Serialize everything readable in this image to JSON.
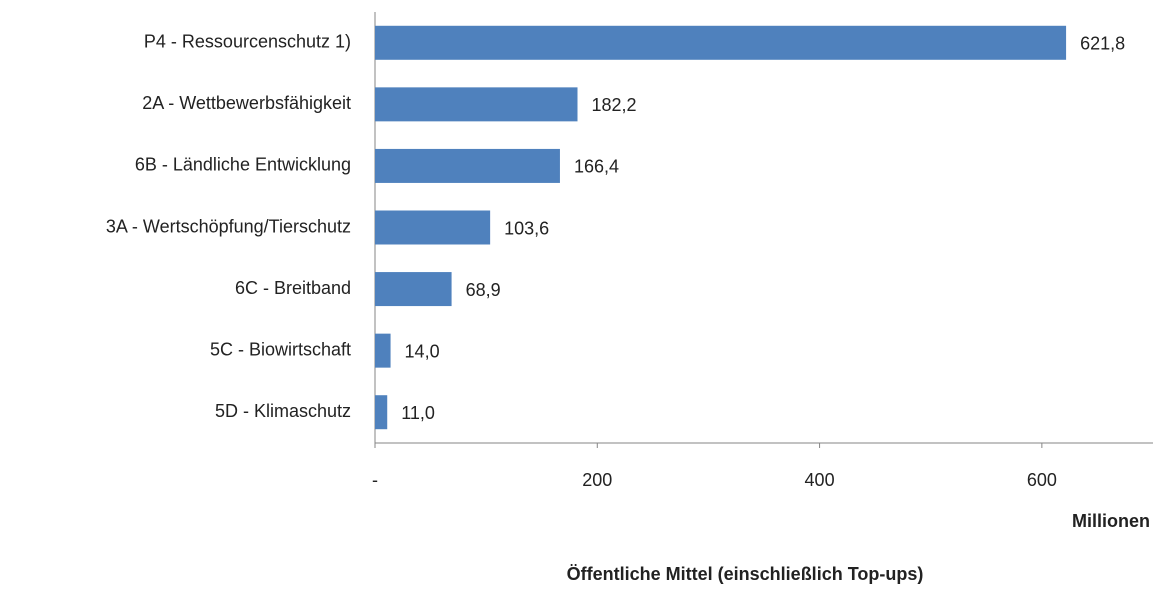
{
  "chart_data": {
    "type": "bar",
    "orientation": "horizontal",
    "title": "Öffentliche Mittel (einschließlich Top-ups)",
    "x_unit_label": "Millionen",
    "categories": [
      "P4 - Ressourcenschutz 1)",
      "2A - Wettbewerbsfähigkeit",
      "6B - Ländliche Entwicklung",
      "3A - Wertschöpfung/Tierschutz",
      "6C - Breitband",
      "5C - Biowirtschaft",
      "5D - Klimaschutz"
    ],
    "values": [
      621.8,
      182.2,
      166.4,
      103.6,
      68.9,
      14.0,
      11.0
    ],
    "value_labels": [
      "621,8",
      "182,2",
      "166,4",
      "103,6",
      "68,9",
      "14,0",
      "11,0"
    ],
    "color": "#4f81bd",
    "xlim": [
      0,
      700
    ],
    "xticks": [
      {
        "value": 0,
        "label": "-"
      },
      200,
      400,
      600
    ],
    "grid": false
  }
}
